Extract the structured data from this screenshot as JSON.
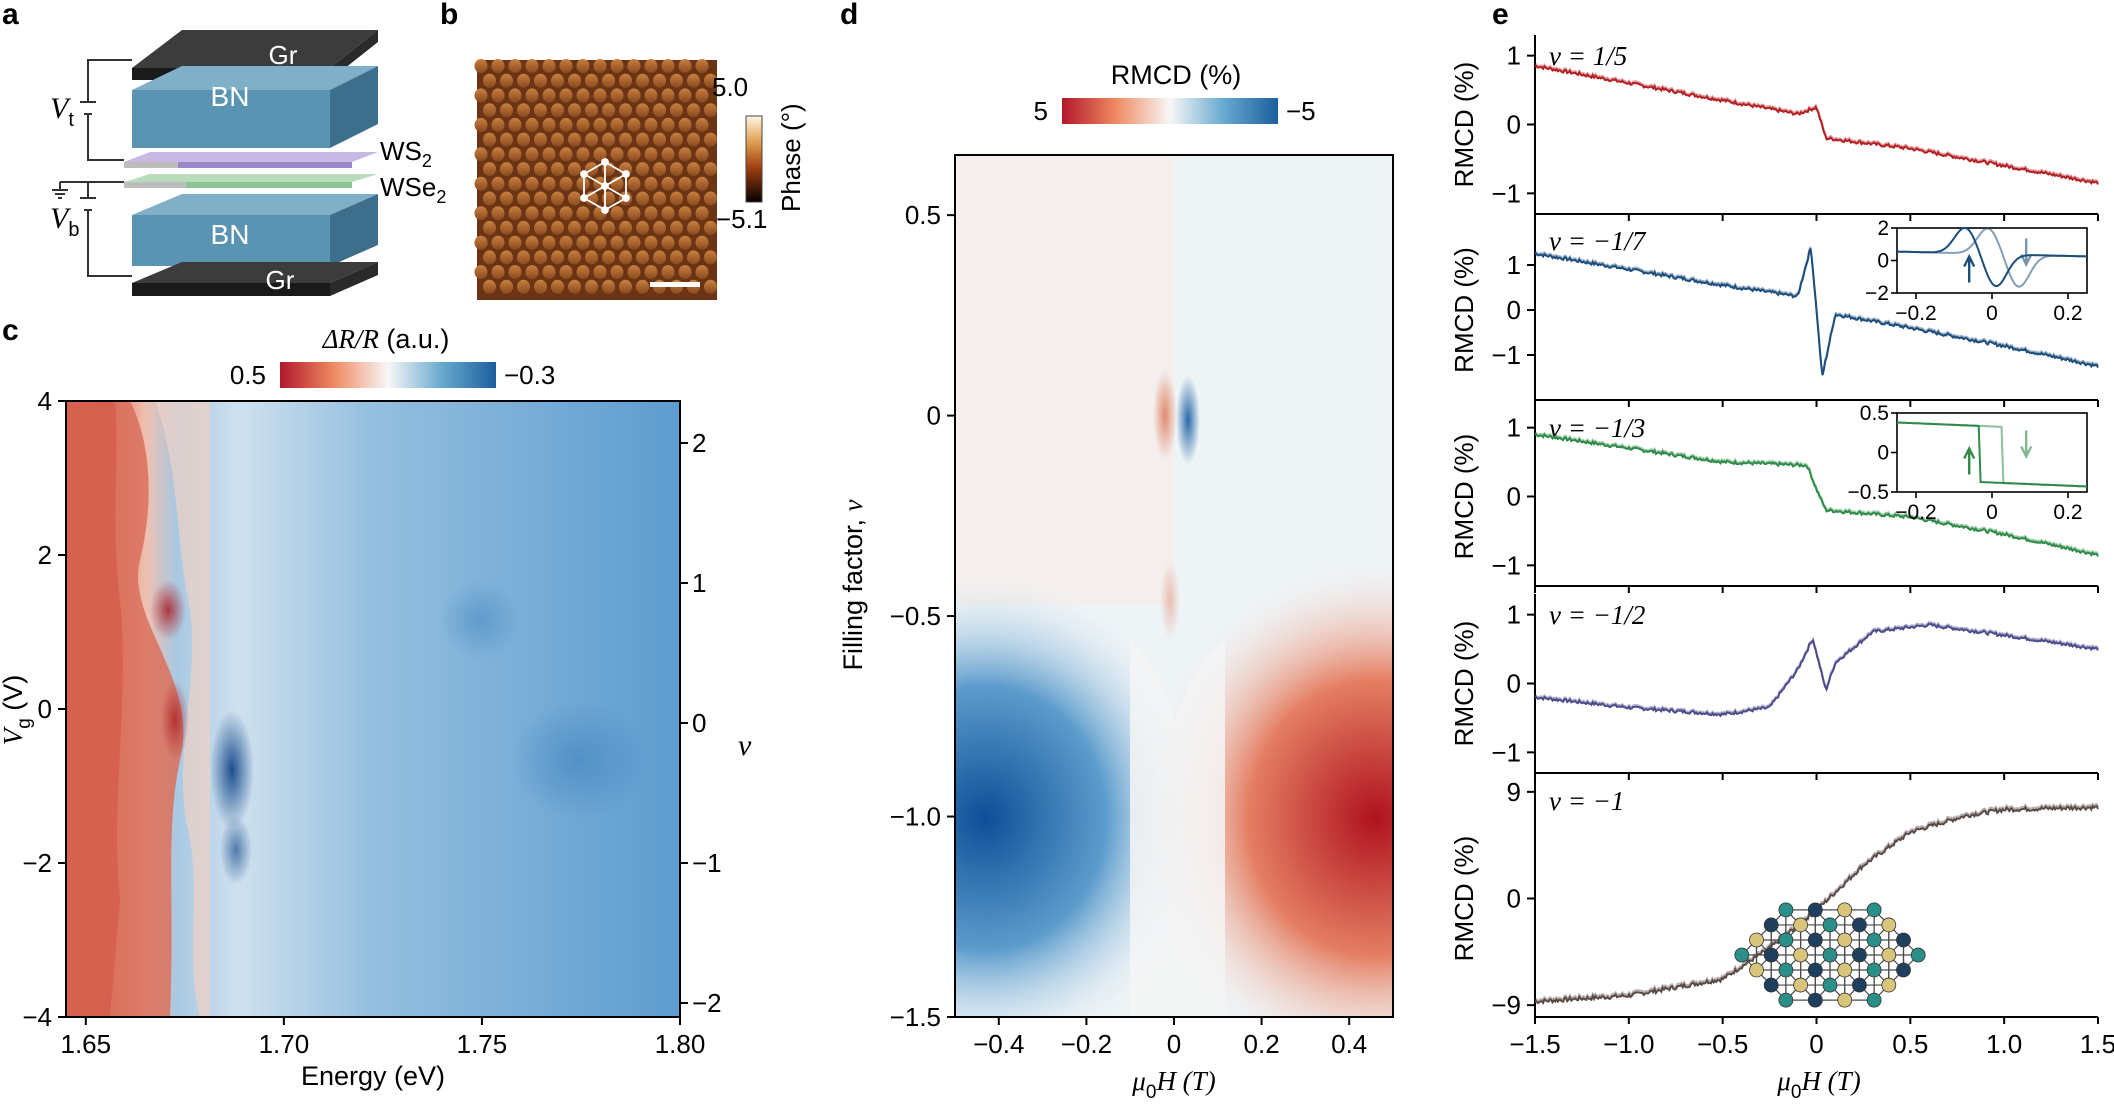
{
  "panels": {
    "a": {
      "letter": "a",
      "layers": [
        "Gr",
        "BN",
        "WS",
        "WSe",
        "BN",
        "Gr"
      ],
      "ws_sub": "2",
      "wse_sub": "2",
      "vt": "V",
      "vt_sub": "t",
      "vb": "V",
      "vb_sub": "b"
    },
    "b": {
      "letter": "b",
      "colorbar_max": "5.0",
      "colorbar_min": "−5.1",
      "colorbar_label": "Phase (°)"
    },
    "c": {
      "letter": "c",
      "colorbar_title_sym": "ΔR/R",
      "colorbar_title_unit": " (a.u.)",
      "colorbar_left": "0.5",
      "colorbar_right": "−0.3",
      "xlabel": "Energy (eV)",
      "ylabel_sym": "V",
      "ylabel_sub": "g",
      "ylabel_unit": " (V)",
      "right_label": "ν",
      "xticks": [
        "1.65",
        "1.70",
        "1.75",
        "1.80"
      ],
      "yticks": [
        "4",
        "2",
        "0",
        "−2",
        "−4"
      ],
      "right_ticks": [
        "2",
        "1",
        "0",
        "−1",
        "−2"
      ]
    },
    "d": {
      "letter": "d",
      "colorbar_title": "RMCD (%)",
      "colorbar_left": "5",
      "colorbar_right": "−5",
      "ylabel": "Filling factor, ",
      "ylabel_sym": "ν",
      "xlabel_sym": "μ",
      "xlabel_sub": "0",
      "xlabel_rest": "H (T)",
      "xticks": [
        "−0.4",
        "−0.2",
        "0",
        "0.2",
        "0.4"
      ],
      "yticks": [
        "0.5",
        "0",
        "−0.5",
        "−1.0",
        "−1.5"
      ]
    },
    "e": {
      "letter": "e",
      "ylabel": "RMCD (%)",
      "xlabel_sym": "μ",
      "xlabel_sub": "0",
      "xlabel_rest": "H (T)",
      "xticks": [
        "−1.5",
        "−1.0",
        "−0.5",
        "0",
        "0.5",
        "1.0",
        "1.5"
      ],
      "rows": [
        {
          "label": "ν = 1/5",
          "yticks": [
            "1",
            "0",
            "−1"
          ]
        },
        {
          "label": "ν = −1/7",
          "yticks": [
            "1",
            "0",
            "−1"
          ]
        },
        {
          "label": "ν = −1/3",
          "yticks": [
            "1",
            "0",
            "−1"
          ]
        },
        {
          "label": "ν = −1/2",
          "yticks": [
            "1",
            "0",
            "−1"
          ]
        },
        {
          "label": "ν = −1",
          "yticks": [
            "9",
            "0",
            "−9"
          ]
        }
      ],
      "inset1_yticks": [
        "2",
        "0",
        "−2"
      ],
      "inset2_yticks": [
        "0.5",
        "0",
        "−0.5"
      ],
      "inset_xticks": [
        "−0.2",
        "0",
        "0.2"
      ]
    }
  },
  "colors": {
    "red": "#b2182b",
    "blue": "#1f5f9e",
    "row1": "#b51f23",
    "row2": "#1c4e7c",
    "row3": "#2e8b48",
    "row4": "#4b4c8a",
    "row5": "#5a4a45"
  },
  "chart_data": [
    {
      "type": "heatmap",
      "panel": "c",
      "xlabel": "Energy (eV)",
      "ylabel": "Vg (V)",
      "xlim": [
        1.645,
        1.8
      ],
      "ylim": [
        -4,
        4
      ],
      "secondary_ylabel": "ν",
      "secondary_ylim": [
        -2.1,
        2.3
      ],
      "colorbar": {
        "label": "ΔR/R (a.u.)",
        "range": [
          0.5,
          -0.3
        ]
      }
    },
    {
      "type": "heatmap",
      "panel": "d",
      "xlabel": "μ0H (T)",
      "ylabel": "Filling factor, ν",
      "xlim": [
        -0.5,
        0.5
      ],
      "ylim": [
        -1.5,
        0.65
      ],
      "colorbar": {
        "label": "RMCD (%)",
        "range": [
          5,
          -5
        ]
      }
    },
    {
      "type": "line",
      "panel": "e",
      "xlabel": "μ0H (T)",
      "ylabel": "RMCD (%)",
      "xlim": [
        -1.5,
        1.5
      ],
      "series": [
        {
          "name": "ν = 1/5",
          "ylim": [
            -1.3,
            1.3
          ],
          "x": [
            -1.5,
            -1.0,
            -0.5,
            -0.1,
            0.0,
            0.05,
            0.5,
            1.0,
            1.5
          ],
          "values": [
            0.85,
            0.6,
            0.35,
            0.15,
            0.25,
            -0.2,
            -0.35,
            -0.6,
            -0.85
          ]
        },
        {
          "name": "ν = −1/7",
          "ylim": [
            -2.0,
            2.0
          ],
          "x": [
            -1.5,
            -1.0,
            -0.5,
            -0.1,
            -0.03,
            0.0,
            0.03,
            0.1,
            0.5,
            1.0,
            1.5
          ],
          "values": [
            1.25,
            0.9,
            0.55,
            0.3,
            1.4,
            0.0,
            -1.5,
            -0.1,
            -0.4,
            -0.8,
            -1.25
          ]
        },
        {
          "name": "ν = −1/3",
          "ylim": [
            -1.3,
            1.3
          ],
          "x": [
            -1.5,
            -1.0,
            -0.5,
            -0.05,
            0.0,
            0.05,
            0.5,
            1.0,
            1.5
          ],
          "values": [
            0.9,
            0.7,
            0.5,
            0.45,
            0.1,
            -0.2,
            -0.3,
            -0.55,
            -0.85
          ]
        },
        {
          "name": "ν = −1/2",
          "ylim": [
            -1.3,
            1.3
          ],
          "x": [
            -1.5,
            -1.0,
            -0.5,
            -0.25,
            -0.1,
            -0.02,
            0.05,
            0.1,
            0.3,
            0.6,
            1.0,
            1.5
          ],
          "values": [
            -0.2,
            -0.35,
            -0.45,
            -0.35,
            0.2,
            0.65,
            -0.1,
            0.3,
            0.75,
            0.85,
            0.7,
            0.5
          ]
        },
        {
          "name": "ν = −1",
          "ylim": [
            -10,
            10
          ],
          "x": [
            -1.5,
            -1.0,
            -0.5,
            -0.25,
            0.0,
            0.25,
            0.5,
            0.8,
            1.0,
            1.5
          ],
          "values": [
            -8.7,
            -8.2,
            -6.8,
            -4.2,
            -1.0,
            2.8,
            5.6,
            7.0,
            7.5,
            7.7
          ]
        }
      ],
      "insets": [
        {
          "row": "ν = −1/7",
          "xlim": [
            -0.25,
            0.25
          ],
          "ylim": [
            -2,
            2
          ]
        },
        {
          "row": "ν = −1/3",
          "xlim": [
            -0.25,
            0.25
          ],
          "ylim": [
            -0.5,
            0.5
          ]
        }
      ]
    }
  ]
}
